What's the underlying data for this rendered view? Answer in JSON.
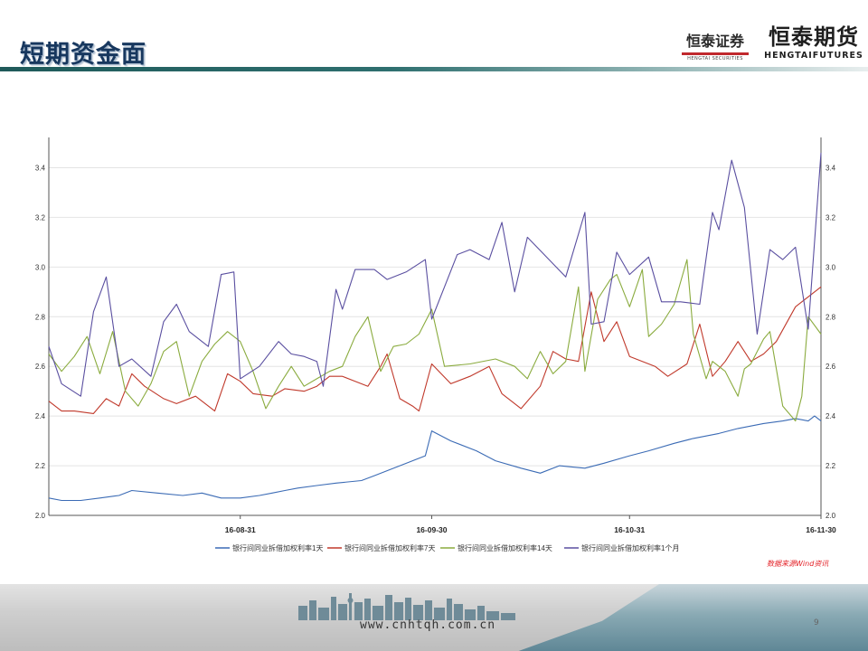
{
  "header": {
    "title": "短期资金面",
    "logo_securities_cn": "恒泰证券",
    "logo_securities_en": "HENGTAI SECURITIES",
    "logo_futures_cn": "恒泰期货",
    "logo_futures_en": "HENGTAIFUTURES"
  },
  "chart_data": {
    "type": "line",
    "title": "",
    "xlabel": "",
    "ylabel": "",
    "ylim": [
      2.0,
      3.5
    ],
    "yticks": [
      "2.0",
      "2.2",
      "2.4",
      "2.6",
      "2.8",
      "3.0",
      "3.2",
      "3.4"
    ],
    "xticks": [
      "16-08-31",
      "16-09-30",
      "16-10-31",
      "16-11-30"
    ],
    "xrange": [
      "2016-08-01",
      "2016-11-30"
    ],
    "grid": true,
    "legend_position": "bottom",
    "series": [
      {
        "name": "银行间同业拆借加权利率1天",
        "color": "#3b6bb5",
        "points": [
          [
            "2016-08-01",
            2.07
          ],
          [
            "2016-08-03",
            2.06
          ],
          [
            "2016-08-06",
            2.06
          ],
          [
            "2016-08-09",
            2.07
          ],
          [
            "2016-08-12",
            2.08
          ],
          [
            "2016-08-14",
            2.1
          ],
          [
            "2016-08-18",
            2.09
          ],
          [
            "2016-08-22",
            2.08
          ],
          [
            "2016-08-25",
            2.09
          ],
          [
            "2016-08-28",
            2.07
          ],
          [
            "2016-08-31",
            2.07
          ],
          [
            "2016-09-03",
            2.08
          ],
          [
            "2016-09-05",
            2.09
          ],
          [
            "2016-09-07",
            2.1
          ],
          [
            "2016-09-09",
            2.11
          ],
          [
            "2016-09-12",
            2.12
          ],
          [
            "2016-09-15",
            2.13
          ],
          [
            "2016-09-19",
            2.14
          ],
          [
            "2016-09-21",
            2.16
          ],
          [
            "2016-09-23",
            2.18
          ],
          [
            "2016-09-25",
            2.2
          ],
          [
            "2016-09-27",
            2.22
          ],
          [
            "2016-09-29",
            2.24
          ],
          [
            "2016-09-30",
            2.34
          ],
          [
            "2016-10-03",
            2.3
          ],
          [
            "2016-10-07",
            2.26
          ],
          [
            "2016-10-10",
            2.22
          ],
          [
            "2016-10-14",
            2.19
          ],
          [
            "2016-10-17",
            2.17
          ],
          [
            "2016-10-20",
            2.2
          ],
          [
            "2016-10-24",
            2.19
          ],
          [
            "2016-10-27",
            2.21
          ],
          [
            "2016-10-31",
            2.24
          ],
          [
            "2016-11-03",
            2.26
          ],
          [
            "2016-11-07",
            2.29
          ],
          [
            "2016-11-10",
            2.31
          ],
          [
            "2016-11-14",
            2.33
          ],
          [
            "2016-11-17",
            2.35
          ],
          [
            "2016-11-21",
            2.37
          ],
          [
            "2016-11-24",
            2.38
          ],
          [
            "2016-11-26",
            2.39
          ],
          [
            "2016-11-28",
            2.38
          ],
          [
            "2016-11-29",
            2.4
          ],
          [
            "2016-11-30",
            2.38
          ]
        ]
      },
      {
        "name": "银行间同业拆借加权利率7天",
        "color": "#c0392b",
        "points": [
          [
            "2016-08-01",
            2.46
          ],
          [
            "2016-08-03",
            2.42
          ],
          [
            "2016-08-05",
            2.42
          ],
          [
            "2016-08-08",
            2.41
          ],
          [
            "2016-08-10",
            2.47
          ],
          [
            "2016-08-12",
            2.44
          ],
          [
            "2016-08-14",
            2.57
          ],
          [
            "2016-08-16",
            2.52
          ],
          [
            "2016-08-19",
            2.47
          ],
          [
            "2016-08-21",
            2.45
          ],
          [
            "2016-08-24",
            2.48
          ],
          [
            "2016-08-27",
            2.42
          ],
          [
            "2016-08-29",
            2.57
          ],
          [
            "2016-08-31",
            2.54
          ],
          [
            "2016-09-02",
            2.49
          ],
          [
            "2016-09-05",
            2.48
          ],
          [
            "2016-09-07",
            2.51
          ],
          [
            "2016-09-10",
            2.5
          ],
          [
            "2016-09-12",
            2.52
          ],
          [
            "2016-09-14",
            2.56
          ],
          [
            "2016-09-16",
            2.56
          ],
          [
            "2016-09-18",
            2.54
          ],
          [
            "2016-09-20",
            2.52
          ],
          [
            "2016-09-22",
            2.6
          ],
          [
            "2016-09-23",
            2.65
          ],
          [
            "2016-09-25",
            2.47
          ],
          [
            "2016-09-27",
            2.44
          ],
          [
            "2016-09-28",
            2.42
          ],
          [
            "2016-09-30",
            2.61
          ],
          [
            "2016-10-03",
            2.53
          ],
          [
            "2016-10-06",
            2.56
          ],
          [
            "2016-10-09",
            2.6
          ],
          [
            "2016-10-11",
            2.49
          ],
          [
            "2016-10-14",
            2.43
          ],
          [
            "2016-10-17",
            2.52
          ],
          [
            "2016-10-19",
            2.66
          ],
          [
            "2016-10-21",
            2.63
          ],
          [
            "2016-10-23",
            2.62
          ],
          [
            "2016-10-25",
            2.9
          ],
          [
            "2016-10-27",
            2.7
          ],
          [
            "2016-10-29",
            2.78
          ],
          [
            "2016-10-31",
            2.64
          ],
          [
            "2016-11-02",
            2.62
          ],
          [
            "2016-11-04",
            2.6
          ],
          [
            "2016-11-06",
            2.56
          ],
          [
            "2016-11-09",
            2.61
          ],
          [
            "2016-11-11",
            2.77
          ],
          [
            "2016-11-13",
            2.56
          ],
          [
            "2016-11-15",
            2.62
          ],
          [
            "2016-11-17",
            2.7
          ],
          [
            "2016-11-19",
            2.62
          ],
          [
            "2016-11-21",
            2.65
          ],
          [
            "2016-11-23",
            2.7
          ],
          [
            "2016-11-26",
            2.84
          ],
          [
            "2016-11-28",
            2.88
          ],
          [
            "2016-11-30",
            2.92
          ]
        ]
      },
      {
        "name": "银行间同业拆借加权利率14天",
        "color": "#8aab3e",
        "points": [
          [
            "2016-08-01",
            2.65
          ],
          [
            "2016-08-03",
            2.58
          ],
          [
            "2016-08-05",
            2.64
          ],
          [
            "2016-08-07",
            2.72
          ],
          [
            "2016-08-09",
            2.57
          ],
          [
            "2016-08-11",
            2.74
          ],
          [
            "2016-08-13",
            2.5
          ],
          [
            "2016-08-15",
            2.44
          ],
          [
            "2016-08-17",
            2.53
          ],
          [
            "2016-08-19",
            2.66
          ],
          [
            "2016-08-21",
            2.7
          ],
          [
            "2016-08-23",
            2.48
          ],
          [
            "2016-08-25",
            2.62
          ],
          [
            "2016-08-27",
            2.69
          ],
          [
            "2016-08-29",
            2.74
          ],
          [
            "2016-08-31",
            2.7
          ],
          [
            "2016-09-02",
            2.58
          ],
          [
            "2016-09-04",
            2.43
          ],
          [
            "2016-09-06",
            2.52
          ],
          [
            "2016-09-08",
            2.6
          ],
          [
            "2016-09-10",
            2.52
          ],
          [
            "2016-09-12",
            2.55
          ],
          [
            "2016-09-14",
            2.58
          ],
          [
            "2016-09-16",
            2.6
          ],
          [
            "2016-09-18",
            2.72
          ],
          [
            "2016-09-20",
            2.8
          ],
          [
            "2016-09-22",
            2.58
          ],
          [
            "2016-09-24",
            2.68
          ],
          [
            "2016-09-26",
            2.69
          ],
          [
            "2016-09-28",
            2.73
          ],
          [
            "2016-09-30",
            2.83
          ],
          [
            "2016-10-02",
            2.6
          ],
          [
            "2016-10-06",
            2.61
          ],
          [
            "2016-10-10",
            2.63
          ],
          [
            "2016-10-13",
            2.6
          ],
          [
            "2016-10-15",
            2.55
          ],
          [
            "2016-10-17",
            2.66
          ],
          [
            "2016-10-19",
            2.57
          ],
          [
            "2016-10-21",
            2.62
          ],
          [
            "2016-10-23",
            2.92
          ],
          [
            "2016-10-24",
            2.58
          ],
          [
            "2016-10-26",
            2.87
          ],
          [
            "2016-10-28",
            2.95
          ],
          [
            "2016-10-29",
            2.97
          ],
          [
            "2016-10-31",
            2.84
          ],
          [
            "2016-11-02",
            2.99
          ],
          [
            "2016-11-03",
            2.72
          ],
          [
            "2016-11-05",
            2.77
          ],
          [
            "2016-11-07",
            2.85
          ],
          [
            "2016-11-09",
            3.03
          ],
          [
            "2016-11-10",
            2.73
          ],
          [
            "2016-11-12",
            2.55
          ],
          [
            "2016-11-13",
            2.62
          ],
          [
            "2016-11-15",
            2.58
          ],
          [
            "2016-11-17",
            2.48
          ],
          [
            "2016-11-18",
            2.59
          ],
          [
            "2016-11-19",
            2.61
          ],
          [
            "2016-11-21",
            2.71
          ],
          [
            "2016-11-22",
            2.74
          ],
          [
            "2016-11-24",
            2.44
          ],
          [
            "2016-11-26",
            2.38
          ],
          [
            "2016-11-27",
            2.48
          ],
          [
            "2016-11-28",
            2.8
          ],
          [
            "2016-11-30",
            2.73
          ]
        ]
      },
      {
        "name": "银行间同业拆借加权利率1个月",
        "color": "#5a4fa0",
        "points": [
          [
            "2016-08-01",
            2.68
          ],
          [
            "2016-08-03",
            2.53
          ],
          [
            "2016-08-06",
            2.48
          ],
          [
            "2016-08-08",
            2.82
          ],
          [
            "2016-08-10",
            2.96
          ],
          [
            "2016-08-12",
            2.6
          ],
          [
            "2016-08-14",
            2.63
          ],
          [
            "2016-08-17",
            2.56
          ],
          [
            "2016-08-19",
            2.78
          ],
          [
            "2016-08-21",
            2.85
          ],
          [
            "2016-08-23",
            2.74
          ],
          [
            "2016-08-26",
            2.68
          ],
          [
            "2016-08-28",
            2.97
          ],
          [
            "2016-08-30",
            2.98
          ],
          [
            "2016-08-31",
            2.55
          ],
          [
            "2016-09-03",
            2.6
          ],
          [
            "2016-09-06",
            2.7
          ],
          [
            "2016-09-08",
            2.65
          ],
          [
            "2016-09-10",
            2.64
          ],
          [
            "2016-09-12",
            2.62
          ],
          [
            "2016-09-13",
            2.52
          ],
          [
            "2016-09-15",
            2.91
          ],
          [
            "2016-09-16",
            2.83
          ],
          [
            "2016-09-18",
            2.99
          ],
          [
            "2016-09-21",
            2.99
          ],
          [
            "2016-09-23",
            2.95
          ],
          [
            "2016-09-26",
            2.98
          ],
          [
            "2016-09-29",
            3.03
          ],
          [
            "2016-09-30",
            2.79
          ],
          [
            "2016-10-02",
            2.92
          ],
          [
            "2016-10-04",
            3.05
          ],
          [
            "2016-10-06",
            3.07
          ],
          [
            "2016-10-09",
            3.03
          ],
          [
            "2016-10-11",
            3.18
          ],
          [
            "2016-10-13",
            2.9
          ],
          [
            "2016-10-15",
            3.12
          ],
          [
            "2016-10-21",
            2.96
          ],
          [
            "2016-10-24",
            3.22
          ],
          [
            "2016-10-25",
            2.77
          ],
          [
            "2016-10-27",
            2.78
          ],
          [
            "2016-10-29",
            3.06
          ],
          [
            "2016-10-31",
            2.97
          ],
          [
            "2016-11-03",
            3.04
          ],
          [
            "2016-11-05",
            2.86
          ],
          [
            "2016-11-08",
            2.86
          ],
          [
            "2016-11-11",
            2.85
          ],
          [
            "2016-11-13",
            3.22
          ],
          [
            "2016-11-14",
            3.15
          ],
          [
            "2016-11-16",
            3.43
          ],
          [
            "2016-11-18",
            3.24
          ],
          [
            "2016-11-20",
            2.73
          ],
          [
            "2016-11-22",
            3.07
          ],
          [
            "2016-11-24",
            3.03
          ],
          [
            "2016-11-26",
            3.08
          ],
          [
            "2016-11-28",
            2.75
          ],
          [
            "2016-11-30",
            3.46
          ]
        ]
      }
    ],
    "source_note": "数据来源Wind资讯"
  },
  "footer": {
    "website": "www.cnhtqh.com.cn",
    "page_number": "9"
  }
}
